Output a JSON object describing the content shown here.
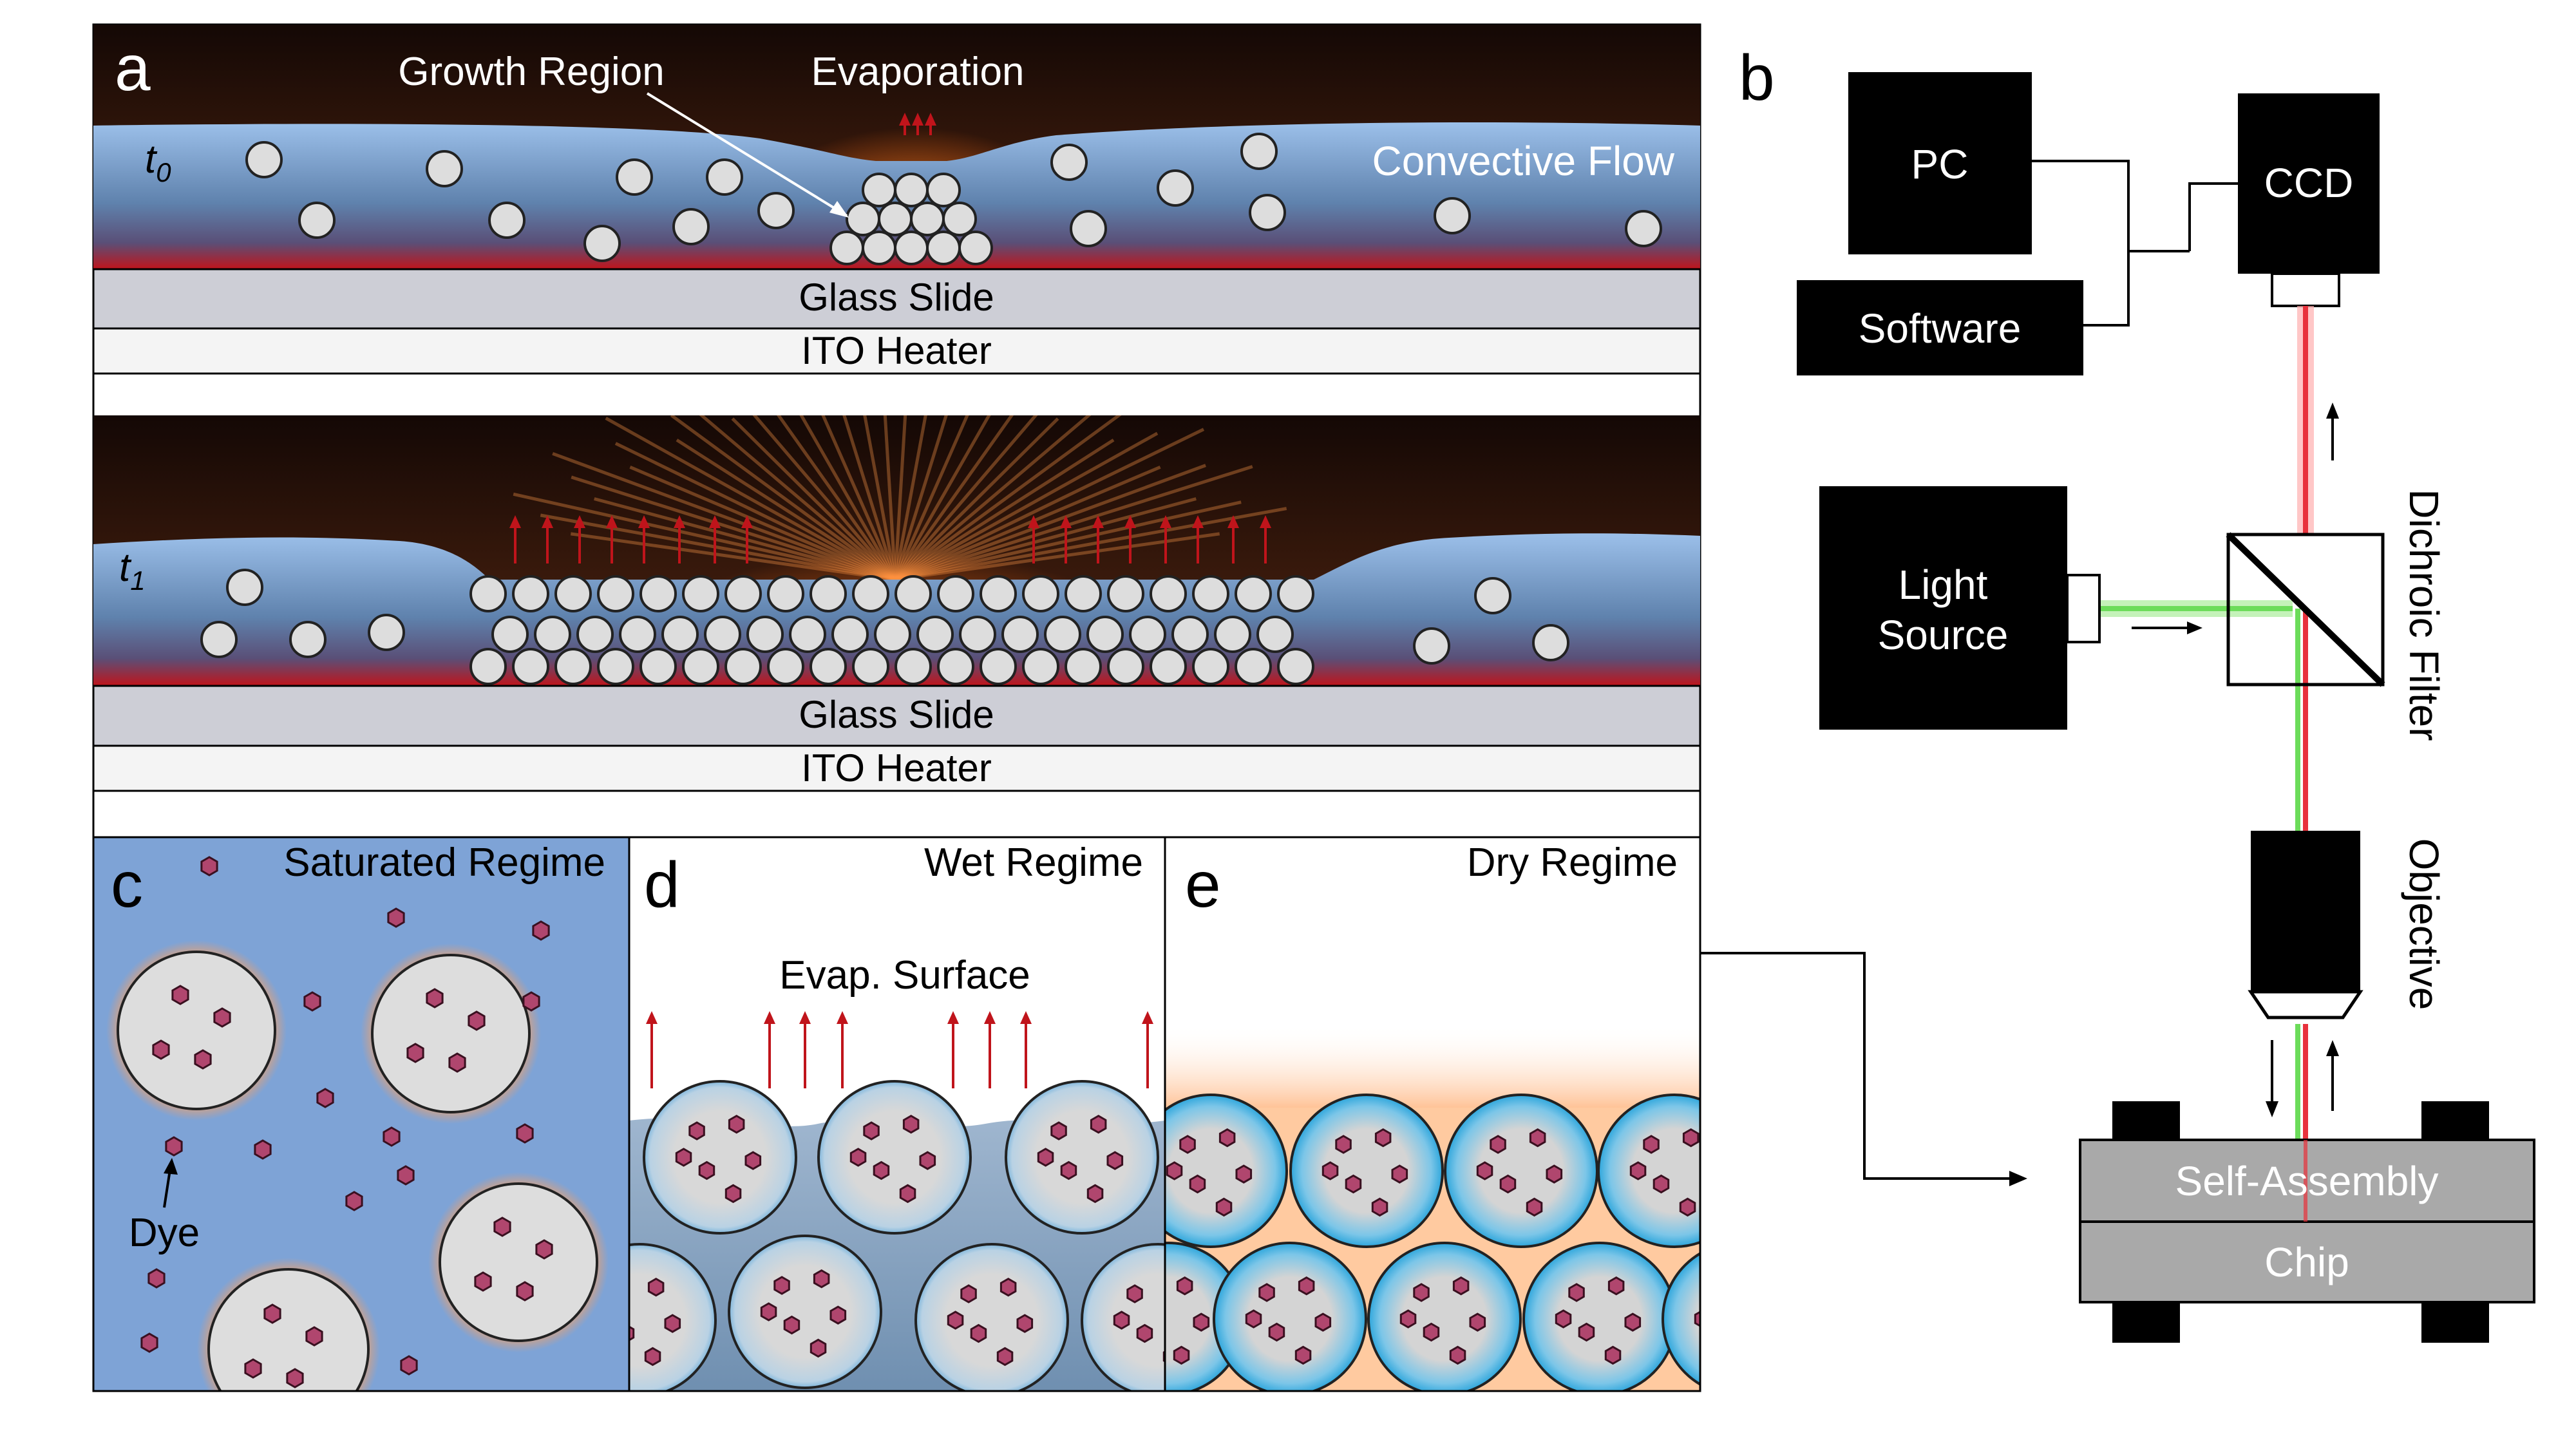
{
  "panel_letters": {
    "a": "a",
    "b": "b",
    "c": "c",
    "d": "d",
    "e": "e"
  },
  "panel_a": {
    "time0": "t",
    "time0_sub": "0",
    "time1": "t",
    "time1_sub": "1",
    "growth_region": "Growth Region",
    "evaporation": "Evaporation",
    "convective_flow": "Convective Flow",
    "glass_slide": "Glass Slide",
    "ito_heater": "ITO Heater"
  },
  "panel_b": {
    "pc": "PC",
    "ccd": "CCD",
    "software": "Software",
    "light_source_line1": "Light",
    "light_source_line2": "Source",
    "dichroic_filter": "Dichroic Filter",
    "objective": "Objective",
    "self_assembly": "Self-Assembly",
    "chip": "Chip"
  },
  "panel_c": {
    "title": "Saturated Regime",
    "dye": "Dye"
  },
  "panel_d": {
    "title": "Wet Regime",
    "evap_surface": "Evap. Surface"
  },
  "panel_e": {
    "title": "Dry Regime"
  },
  "colors": {
    "liquid_blue": "#7ea3d6",
    "heat_red": "#c0141b",
    "dark_air": "#2a130a",
    "glow_orange": "#ff8a2a",
    "particle_fill": "#dddddd",
    "glass_slide": "#cdced6",
    "dye_fill": "#b0466e",
    "cyan_shell": "#3aaee0",
    "chip_gray": "#a9a9a9",
    "laser_red": "#e8323c",
    "laser_green": "#6cdc5a"
  }
}
